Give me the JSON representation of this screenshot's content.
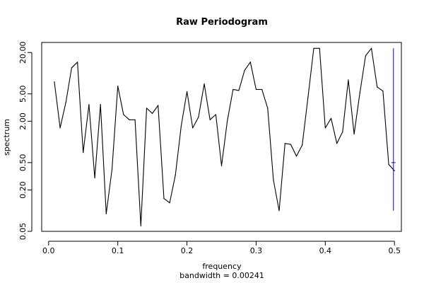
{
  "chart_data": {
    "type": "line",
    "title": "Raw Periodogram",
    "xlabel": "frequency",
    "xsublabel": "bandwidth = 0.00241",
    "ylabel": "spectrum",
    "y_scale": "log",
    "xlim": [
      -0.01,
      0.51
    ],
    "ylim": [
      0.05,
      28
    ],
    "x_ticks": [
      0.0,
      0.1,
      0.2,
      0.3,
      0.4,
      0.5
    ],
    "x_tick_labels": [
      "0.0",
      "0.1",
      "0.2",
      "0.3",
      "0.4",
      "0.5"
    ],
    "y_ticks": [
      0.05,
      0.2,
      0.5,
      2.0,
      5.0,
      20.0
    ],
    "y_tick_labels": [
      "0.05",
      "0.20",
      "0.50",
      "2.00",
      "5.00",
      "20.00"
    ],
    "grid": false,
    "colors": {
      "series": "#000000",
      "ci_bar": "#0000ff"
    },
    "series": [
      {
        "x": [
          0.0083,
          0.0167,
          0.025,
          0.0333,
          0.0417,
          0.05,
          0.0583,
          0.0667,
          0.075,
          0.0833,
          0.0917,
          0.1,
          0.1083,
          0.1167,
          0.125,
          0.1333,
          0.1417,
          0.15,
          0.1583,
          0.1667,
          0.175,
          0.1833,
          0.1917,
          0.2,
          0.2083,
          0.2167,
          0.225,
          0.2333,
          0.2417,
          0.25,
          0.2583,
          0.2667,
          0.275,
          0.2833,
          0.2917,
          0.3,
          0.3083,
          0.3167,
          0.325,
          0.3333,
          0.3417,
          0.35,
          0.3583,
          0.3667,
          0.375,
          0.3833,
          0.3917,
          0.4,
          0.4083,
          0.4167,
          0.425,
          0.4333,
          0.4417,
          0.45,
          0.4583,
          0.4667,
          0.475,
          0.4833,
          0.4917,
          0.5
        ],
        "y": [
          7.5,
          1.6,
          3.8,
          12.0,
          14.5,
          0.7,
          3.5,
          0.3,
          3.5,
          0.09,
          0.4,
          6.5,
          2.5,
          2.1,
          2.1,
          0.06,
          3.1,
          2.6,
          3.4,
          0.15,
          0.13,
          0.33,
          1.7,
          5.4,
          1.6,
          2.3,
          7.0,
          2.1,
          2.5,
          0.45,
          2.0,
          5.8,
          5.6,
          11.0,
          14.5,
          5.8,
          5.8,
          3.1,
          0.28,
          0.1,
          0.95,
          0.92,
          0.62,
          0.9,
          4.5,
          23.0,
          23.0,
          1.6,
          2.2,
          0.95,
          1.4,
          8.0,
          1.3,
          5.2,
          18.0,
          23.0,
          6.3,
          5.5,
          0.47,
          0.38
        ]
      }
    ],
    "ci_bar": {
      "x": 0.4985,
      "low": 0.1,
      "high": 23.0,
      "mid": 0.5
    }
  }
}
